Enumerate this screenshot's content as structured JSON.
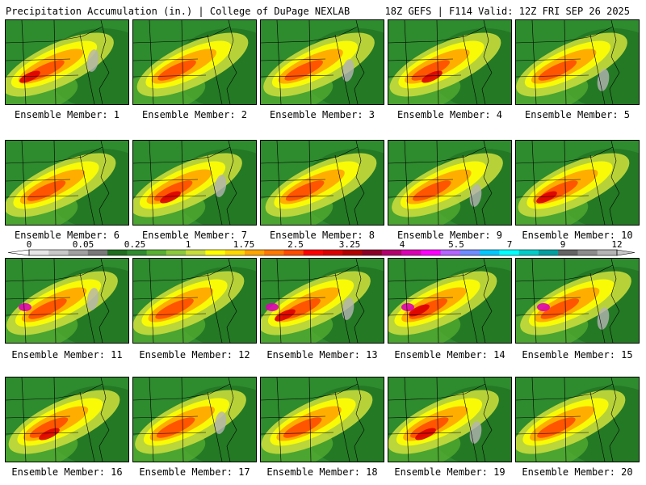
{
  "header": {
    "title": "Precipitation Accumulation (in.) | College of DuPage NEXLAB",
    "valid": "18Z GEFS | F114 Valid: 12Z FRI SEP 26 2025"
  },
  "members": [
    "Ensemble Member: 1",
    "Ensemble Member: 2",
    "Ensemble Member: 3",
    "Ensemble Member: 4",
    "Ensemble Member: 5",
    "Ensemble Member: 6",
    "Ensemble Member: 7",
    "Ensemble Member: 8",
    "Ensemble Member: 9",
    "Ensemble Member: 10",
    "Ensemble Member: 11",
    "Ensemble Member: 12",
    "Ensemble Member: 13",
    "Ensemble Member: 14",
    "Ensemble Member: 15",
    "Ensemble Member: 16",
    "Ensemble Member: 17",
    "Ensemble Member: 18",
    "Ensemble Member: 19",
    "Ensemble Member: 20"
  ],
  "colorbar": {
    "labels": [
      "0",
      "0.05",
      "0.25",
      "1",
      "1.75",
      "2.5",
      "3.25",
      "4",
      "5.5",
      "7",
      "9",
      "12"
    ],
    "colors": [
      "#e6e6e6",
      "#c8c8c8",
      "#a0a0a0",
      "#787878",
      "#1e6e1e",
      "#2e8b2e",
      "#58b032",
      "#8cc83c",
      "#c8dc3c",
      "#ffff00",
      "#ffd700",
      "#ffa500",
      "#ff7800",
      "#ff4b00",
      "#ff0000",
      "#dc0000",
      "#b40000",
      "#8c0028",
      "#b4006e",
      "#dc00b4",
      "#ff00ff",
      "#b464ff",
      "#6e8cff",
      "#00c8ff",
      "#00ffff",
      "#00cdc8",
      "#00a0a0",
      "#646464",
      "#8c8c8c",
      "#b4b4b4"
    ]
  }
}
